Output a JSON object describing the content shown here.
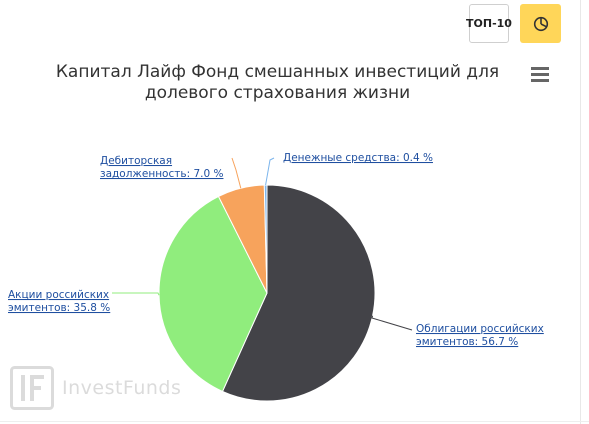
{
  "toolbar": {
    "top10_label": "ТОП-10",
    "pie_icon": "pie-chart-icon",
    "menu_icon": "hamburger-menu-icon"
  },
  "chart_data": {
    "type": "pie",
    "title_lines": [
      "Капитал Лайф Фонд смешанных инвестиций для",
      "долевого страхования жизни"
    ],
    "slices": [
      {
        "label_lines": [
          "Облигации российских",
          "эмитентов: 56.7 %"
        ],
        "value": 56.7,
        "color": "#434348"
      },
      {
        "label_lines": [
          "Акции российских",
          "эмитентов: 35.8 %"
        ],
        "value": 35.8,
        "color": "#90ed7d"
      },
      {
        "label_lines": [
          "Дебиторская",
          "задолженность: 7.0 %"
        ],
        "value": 7.0,
        "color": "#f7a35c"
      },
      {
        "label_lines": [
          "Денежные средства: 0.4 %"
        ],
        "value": 0.4,
        "color": "#7cb5ec"
      }
    ]
  },
  "watermark": {
    "text": "InvestFunds",
    "logo_letters": "IF"
  }
}
